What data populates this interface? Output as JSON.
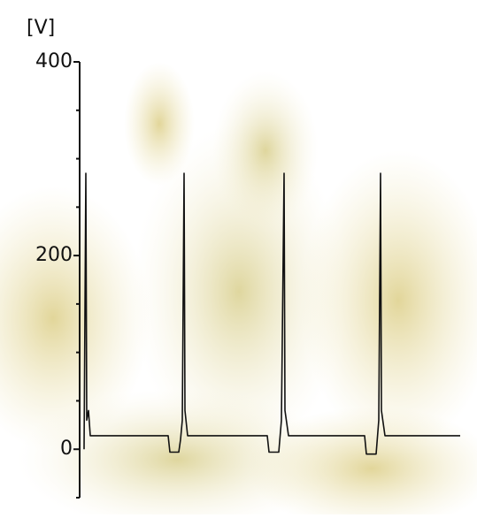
{
  "chart_data": {
    "type": "line",
    "y_label": "[V]",
    "x": [
      5,
      7,
      8,
      10,
      12,
      100,
      102,
      112,
      114,
      116,
      118,
      119,
      122,
      212,
      214,
      225,
      228,
      231,
      232,
      236,
      322,
      324,
      335,
      338,
      340,
      341,
      345,
      430
    ],
    "xlim": [
      0,
      430
    ],
    "series": [
      {
        "color": "#111111",
        "values": [
          0,
          285,
          30,
          40,
          14,
          14,
          -3,
          -3,
          10,
          30,
          285,
          40,
          14,
          14,
          -3,
          -3,
          30,
          285,
          40,
          14,
          14,
          -5,
          -5,
          30,
          285,
          40,
          14,
          14
        ]
      }
    ],
    "ylim": [
      -50,
      400
    ],
    "yticks": [
      0,
      200,
      400
    ],
    "minor_yticks": [
      -50,
      50,
      100,
      150,
      250,
      300,
      350
    ]
  }
}
